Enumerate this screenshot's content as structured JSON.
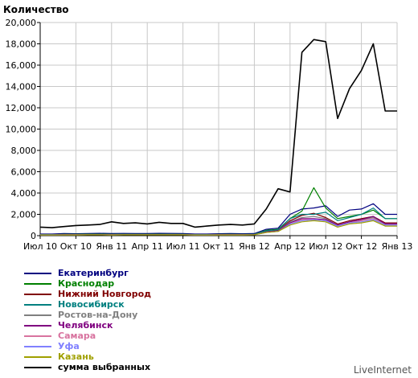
{
  "brand": "LiveInternet",
  "chart_data": {
    "type": "line",
    "title": "",
    "ylabel": "Количество",
    "xlabel": "",
    "ylim": [
      0,
      20000
    ],
    "yticks": [
      0,
      2000,
      4000,
      6000,
      8000,
      10000,
      12000,
      14000,
      16000,
      18000,
      20000
    ],
    "ytick_labels": [
      "0",
      "2,000",
      "4,000",
      "6,000",
      "8,000",
      "10,000",
      "12,000",
      "14,000",
      "16,000",
      "18,000",
      "20,000"
    ],
    "x": [
      "2010-07",
      "2010-08",
      "2010-09",
      "2010-10",
      "2010-11",
      "2010-12",
      "2011-01",
      "2011-02",
      "2011-03",
      "2011-04",
      "2011-05",
      "2011-06",
      "2011-07",
      "2011-08",
      "2011-09",
      "2011-10",
      "2011-11",
      "2011-12",
      "2012-01",
      "2012-02",
      "2012-03",
      "2012-04",
      "2012-05",
      "2012-06",
      "2012-07",
      "2012-08",
      "2012-09",
      "2012-10",
      "2012-11",
      "2012-12",
      "2013-01"
    ],
    "xticks": [
      {
        "label": "Июл 10",
        "index": 0
      },
      {
        "label": "Окт 10",
        "index": 3
      },
      {
        "label": "Янв 11",
        "index": 6
      },
      {
        "label": "Апр 11",
        "index": 9
      },
      {
        "label": "Июл 11",
        "index": 12
      },
      {
        "label": "Окт 11",
        "index": 15
      },
      {
        "label": "Янв 12",
        "index": 18
      },
      {
        "label": "Апр 12",
        "index": 21
      },
      {
        "label": "Июл 12",
        "index": 24
      },
      {
        "label": "Окт 12",
        "index": 27
      },
      {
        "label": "Янв 13",
        "index": 30
      }
    ],
    "grid": true,
    "legend_position": "bottom-left",
    "series": [
      {
        "name": "Екатеринбург",
        "color": "#000080",
        "values": [
          150,
          150,
          200,
          180,
          200,
          220,
          200,
          210,
          200,
          200,
          220,
          210,
          200,
          150,
          150,
          180,
          200,
          180,
          200,
          600,
          700,
          2000,
          2500,
          2600,
          2800,
          1800,
          2400,
          2500,
          3000,
          2000,
          2000
        ]
      },
      {
        "name": "Краснодар",
        "color": "#008000",
        "values": [
          100,
          100,
          120,
          120,
          140,
          140,
          120,
          130,
          130,
          130,
          140,
          130,
          130,
          100,
          100,
          110,
          120,
          110,
          130,
          500,
          600,
          1600,
          2300,
          4500,
          2600,
          1600,
          1800,
          2000,
          2400,
          1600,
          1600
        ]
      },
      {
        "name": "Нижний Новгород",
        "color": "#800000",
        "values": [
          90,
          90,
          100,
          100,
          110,
          110,
          100,
          110,
          110,
          110,
          110,
          110,
          110,
          90,
          90,
          100,
          100,
          100,
          110,
          400,
          500,
          1400,
          1900,
          2100,
          1700,
          1100,
          1400,
          1600,
          1800,
          1200,
          1200
        ]
      },
      {
        "name": "Новосибирск",
        "color": "#008080",
        "values": [
          100,
          100,
          110,
          110,
          120,
          120,
          110,
          120,
          120,
          120,
          130,
          120,
          120,
          100,
          100,
          110,
          110,
          110,
          120,
          450,
          550,
          1600,
          2000,
          2000,
          2200,
          1400,
          1700,
          2000,
          2600,
          1600,
          1600
        ]
      },
      {
        "name": "Ростов-на-Дону",
        "color": "#808080",
        "values": [
          80,
          80,
          90,
          90,
          100,
          100,
          90,
          100,
          100,
          100,
          100,
          100,
          100,
          80,
          80,
          90,
          90,
          90,
          100,
          350,
          450,
          1300,
          1700,
          1800,
          1600,
          1000,
          1300,
          1500,
          1700,
          1100,
          1100
        ]
      },
      {
        "name": "Челябинск",
        "color": "#800080",
        "values": [
          70,
          70,
          80,
          80,
          90,
          90,
          80,
          90,
          90,
          90,
          90,
          90,
          90,
          70,
          70,
          80,
          80,
          80,
          90,
          350,
          450,
          1200,
          1600,
          1600,
          1500,
          1000,
          1300,
          1500,
          1800,
          1100,
          1100
        ]
      },
      {
        "name": "Самара",
        "color": "#d8739f",
        "values": [
          70,
          70,
          80,
          80,
          90,
          90,
          80,
          90,
          90,
          90,
          90,
          90,
          90,
          70,
          70,
          80,
          80,
          80,
          90,
          300,
          400,
          1100,
          1500,
          1500,
          1400,
          900,
          1200,
          1400,
          1600,
          1000,
          1000
        ]
      },
      {
        "name": "Уфа",
        "color": "#8080ff",
        "values": [
          60,
          60,
          70,
          70,
          80,
          80,
          70,
          80,
          80,
          80,
          80,
          80,
          80,
          60,
          60,
          70,
          70,
          70,
          80,
          300,
          400,
          1100,
          1400,
          1500,
          1400,
          900,
          1200,
          1300,
          1500,
          1000,
          1000
        ]
      },
      {
        "name": "Казань",
        "color": "#a0a000",
        "values": [
          60,
          60,
          70,
          70,
          80,
          80,
          70,
          80,
          80,
          80,
          80,
          80,
          80,
          60,
          60,
          70,
          70,
          70,
          80,
          300,
          400,
          1000,
          1300,
          1400,
          1300,
          800,
          1100,
          1200,
          1400,
          900,
          900
        ]
      },
      {
        "name": "сумма выбранных",
        "color": "#000000",
        "values": [
          800,
          750,
          850,
          950,
          1000,
          1050,
          1300,
          1150,
          1200,
          1100,
          1250,
          1150,
          1150,
          800,
          900,
          1000,
          1050,
          1000,
          1100,
          2500,
          4400,
          4100,
          17200,
          18400,
          18200,
          11000,
          13800,
          15500,
          18000,
          11700,
          11700
        ]
      }
    ]
  }
}
